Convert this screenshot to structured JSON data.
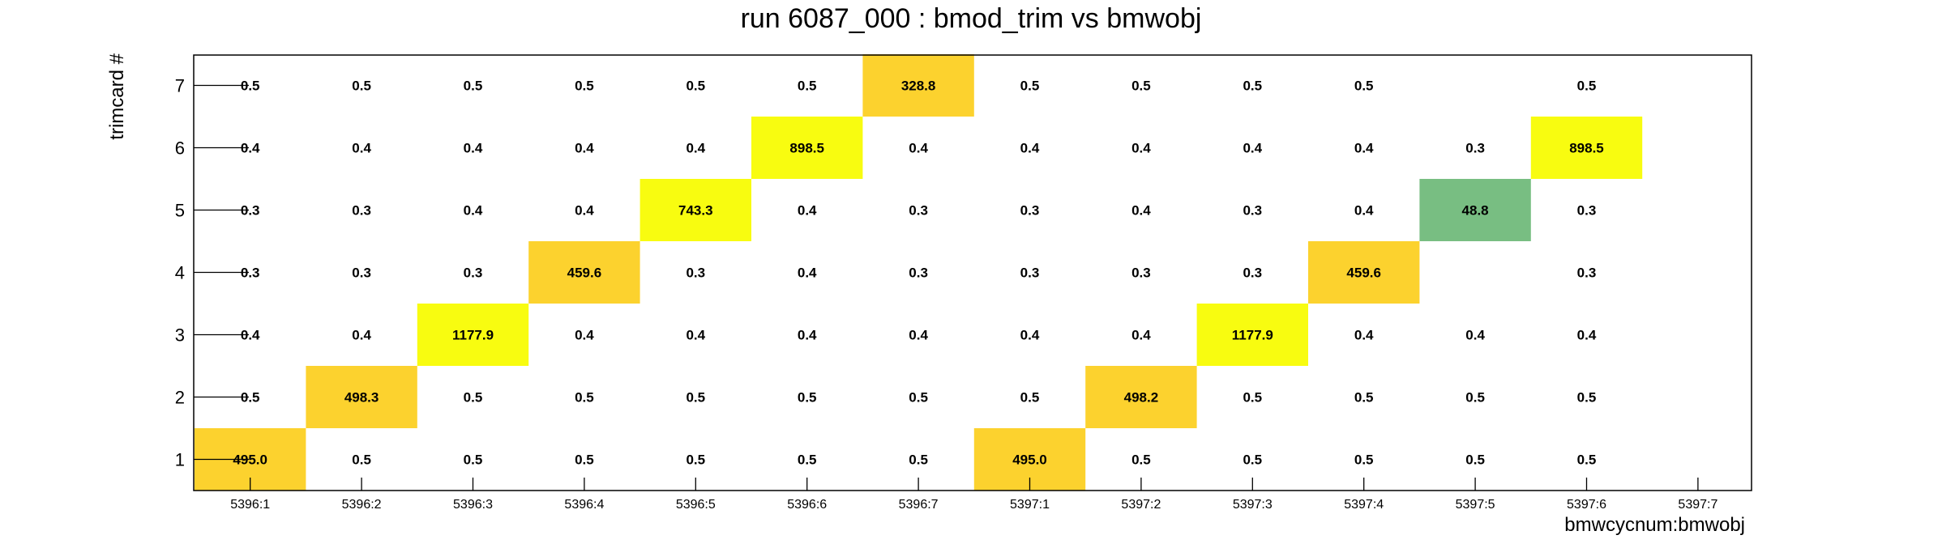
{
  "chart_data": {
    "type": "heatmap",
    "title": "run 6087_000 : bmod_trim vs bmwobj",
    "xlabel": "bmwcycnum:bmwobj",
    "ylabel": "trimcard #",
    "x_categories": [
      "5396:1",
      "5396:2",
      "5396:3",
      "5396:4",
      "5396:5",
      "5396:6",
      "5396:7",
      "5397:1",
      "5397:2",
      "5397:3",
      "5397:4",
      "5397:5",
      "5397:6",
      "5397:7"
    ],
    "y_categories": [
      "1",
      "2",
      "3",
      "4",
      "5",
      "6",
      "7"
    ],
    "grid": false,
    "colors": {
      "low": "#78be82",
      "mid": "#fcd22e",
      "high": "#f8fc10"
    },
    "cells": [
      {
        "x": "5396:1",
        "y": "7",
        "value": 0.5
      },
      {
        "x": "5396:2",
        "y": "7",
        "value": 0.5
      },
      {
        "x": "5396:3",
        "y": "7",
        "value": 0.5
      },
      {
        "x": "5396:4",
        "y": "7",
        "value": 0.5
      },
      {
        "x": "5396:5",
        "y": "7",
        "value": 0.5
      },
      {
        "x": "5396:6",
        "y": "7",
        "value": 0.5
      },
      {
        "x": "5396:7",
        "y": "7",
        "value": 328.8
      },
      {
        "x": "5397:1",
        "y": "7",
        "value": 0.5
      },
      {
        "x": "5397:2",
        "y": "7",
        "value": 0.5
      },
      {
        "x": "5397:3",
        "y": "7",
        "value": 0.5
      },
      {
        "x": "5397:4",
        "y": "7",
        "value": 0.5
      },
      {
        "x": "5397:6",
        "y": "7",
        "value": 0.5
      },
      {
        "x": "5396:1",
        "y": "6",
        "value": 0.4
      },
      {
        "x": "5396:2",
        "y": "6",
        "value": 0.4
      },
      {
        "x": "5396:3",
        "y": "6",
        "value": 0.4
      },
      {
        "x": "5396:4",
        "y": "6",
        "value": 0.4
      },
      {
        "x": "5396:5",
        "y": "6",
        "value": 0.4
      },
      {
        "x": "5396:6",
        "y": "6",
        "value": 898.5
      },
      {
        "x": "5396:7",
        "y": "6",
        "value": 0.4
      },
      {
        "x": "5397:1",
        "y": "6",
        "value": 0.4
      },
      {
        "x": "5397:2",
        "y": "6",
        "value": 0.4
      },
      {
        "x": "5397:3",
        "y": "6",
        "value": 0.4
      },
      {
        "x": "5397:4",
        "y": "6",
        "value": 0.4
      },
      {
        "x": "5397:5",
        "y": "6",
        "value": 0.3
      },
      {
        "x": "5397:6",
        "y": "6",
        "value": 898.5
      },
      {
        "x": "5396:1",
        "y": "5",
        "value": 0.3
      },
      {
        "x": "5396:2",
        "y": "5",
        "value": 0.3
      },
      {
        "x": "5396:3",
        "y": "5",
        "value": 0.4
      },
      {
        "x": "5396:4",
        "y": "5",
        "value": 0.4
      },
      {
        "x": "5396:5",
        "y": "5",
        "value": 743.3
      },
      {
        "x": "5396:6",
        "y": "5",
        "value": 0.4
      },
      {
        "x": "5396:7",
        "y": "5",
        "value": 0.3
      },
      {
        "x": "5397:1",
        "y": "5",
        "value": 0.3
      },
      {
        "x": "5397:2",
        "y": "5",
        "value": 0.4
      },
      {
        "x": "5397:3",
        "y": "5",
        "value": 0.3
      },
      {
        "x": "5397:4",
        "y": "5",
        "value": 0.4
      },
      {
        "x": "5397:5",
        "y": "5",
        "value": 48.8
      },
      {
        "x": "5397:6",
        "y": "5",
        "value": 0.3
      },
      {
        "x": "5396:1",
        "y": "4",
        "value": 0.3
      },
      {
        "x": "5396:2",
        "y": "4",
        "value": 0.3
      },
      {
        "x": "5396:3",
        "y": "4",
        "value": 0.3
      },
      {
        "x": "5396:4",
        "y": "4",
        "value": 459.6
      },
      {
        "x": "5396:5",
        "y": "4",
        "value": 0.3
      },
      {
        "x": "5396:6",
        "y": "4",
        "value": 0.4
      },
      {
        "x": "5396:7",
        "y": "4",
        "value": 0.3
      },
      {
        "x": "5397:1",
        "y": "4",
        "value": 0.3
      },
      {
        "x": "5397:2",
        "y": "4",
        "value": 0.3
      },
      {
        "x": "5397:3",
        "y": "4",
        "value": 0.3
      },
      {
        "x": "5397:4",
        "y": "4",
        "value": 459.6
      },
      {
        "x": "5397:6",
        "y": "4",
        "value": 0.3
      },
      {
        "x": "5396:1",
        "y": "3",
        "value": 0.4
      },
      {
        "x": "5396:2",
        "y": "3",
        "value": 0.4
      },
      {
        "x": "5396:3",
        "y": "3",
        "value": 1177.9
      },
      {
        "x": "5396:4",
        "y": "3",
        "value": 0.4
      },
      {
        "x": "5396:5",
        "y": "3",
        "value": 0.4
      },
      {
        "x": "5396:6",
        "y": "3",
        "value": 0.4
      },
      {
        "x": "5396:7",
        "y": "3",
        "value": 0.4
      },
      {
        "x": "5397:1",
        "y": "3",
        "value": 0.4
      },
      {
        "x": "5397:2",
        "y": "3",
        "value": 0.4
      },
      {
        "x": "5397:3",
        "y": "3",
        "value": 1177.9
      },
      {
        "x": "5397:4",
        "y": "3",
        "value": 0.4
      },
      {
        "x": "5397:5",
        "y": "3",
        "value": 0.4
      },
      {
        "x": "5397:6",
        "y": "3",
        "value": 0.4
      },
      {
        "x": "5396:1",
        "y": "2",
        "value": 0.5
      },
      {
        "x": "5396:2",
        "y": "2",
        "value": 498.3
      },
      {
        "x": "5396:3",
        "y": "2",
        "value": 0.5
      },
      {
        "x": "5396:4",
        "y": "2",
        "value": 0.5
      },
      {
        "x": "5396:5",
        "y": "2",
        "value": 0.5
      },
      {
        "x": "5396:6",
        "y": "2",
        "value": 0.5
      },
      {
        "x": "5396:7",
        "y": "2",
        "value": 0.5
      },
      {
        "x": "5397:1",
        "y": "2",
        "value": 0.5
      },
      {
        "x": "5397:2",
        "y": "2",
        "value": 498.2
      },
      {
        "x": "5397:3",
        "y": "2",
        "value": 0.5
      },
      {
        "x": "5397:4",
        "y": "2",
        "value": 0.5
      },
      {
        "x": "5397:5",
        "y": "2",
        "value": 0.5
      },
      {
        "x": "5397:6",
        "y": "2",
        "value": 0.5
      },
      {
        "x": "5396:1",
        "y": "1",
        "value": 495.0
      },
      {
        "x": "5396:2",
        "y": "1",
        "value": 0.5
      },
      {
        "x": "5396:3",
        "y": "1",
        "value": 0.5
      },
      {
        "x": "5396:4",
        "y": "1",
        "value": 0.5
      },
      {
        "x": "5396:5",
        "y": "1",
        "value": 0.5
      },
      {
        "x": "5396:6",
        "y": "1",
        "value": 0.5
      },
      {
        "x": "5396:7",
        "y": "1",
        "value": 0.5
      },
      {
        "x": "5397:1",
        "y": "1",
        "value": 495.0
      },
      {
        "x": "5397:2",
        "y": "1",
        "value": 0.5
      },
      {
        "x": "5397:3",
        "y": "1",
        "value": 0.5
      },
      {
        "x": "5397:4",
        "y": "1",
        "value": 0.5
      },
      {
        "x": "5397:5",
        "y": "1",
        "value": 0.5
      },
      {
        "x": "5397:6",
        "y": "1",
        "value": 0.5
      }
    ]
  }
}
